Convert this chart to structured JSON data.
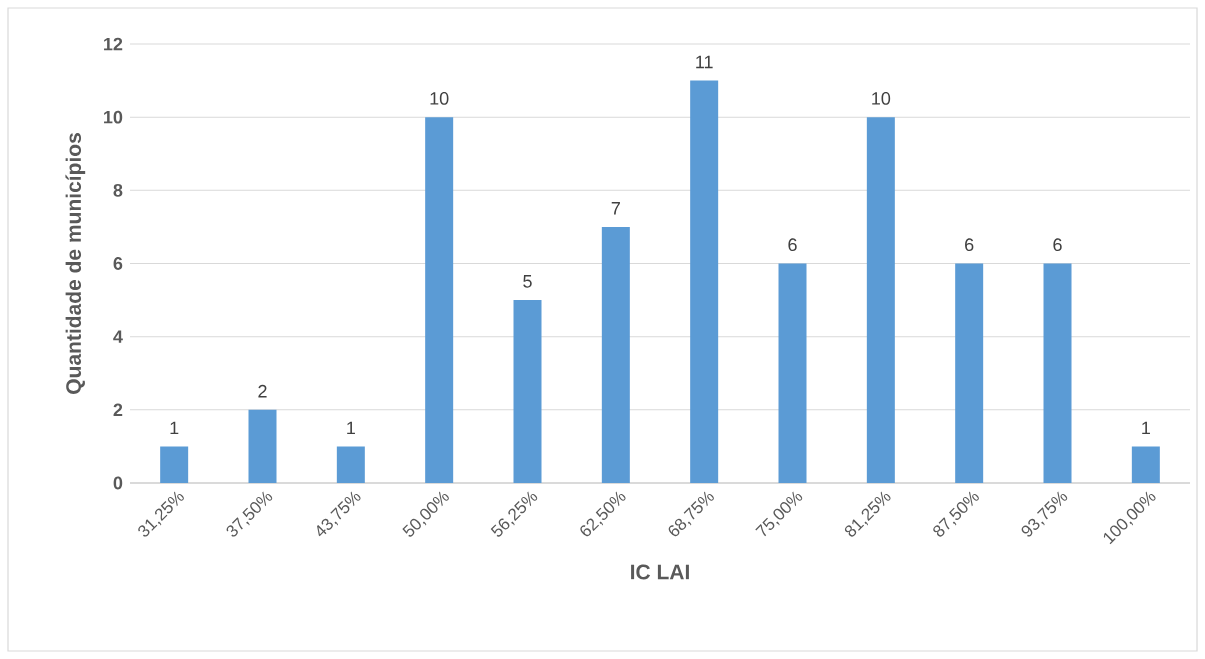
{
  "chart_data": {
    "type": "bar",
    "xlabel": "IC LAI",
    "ylabel": "Quantidade de municípios",
    "categories": [
      "31,25%",
      "37,50%",
      "43,75%",
      "50,00%",
      "56,25%",
      "62,50%",
      "68,75%",
      "75,00%",
      "81,25%",
      "87,50%",
      "93,75%",
      "100,00%"
    ],
    "values": [
      1,
      2,
      1,
      10,
      5,
      7,
      11,
      6,
      10,
      6,
      6,
      1
    ],
    "color": "#5b9bd5",
    "ylim": [
      0,
      12
    ],
    "yticks": [
      0,
      2,
      4,
      6,
      8,
      10,
      12
    ],
    "grid": "y",
    "data_labels": true
  }
}
